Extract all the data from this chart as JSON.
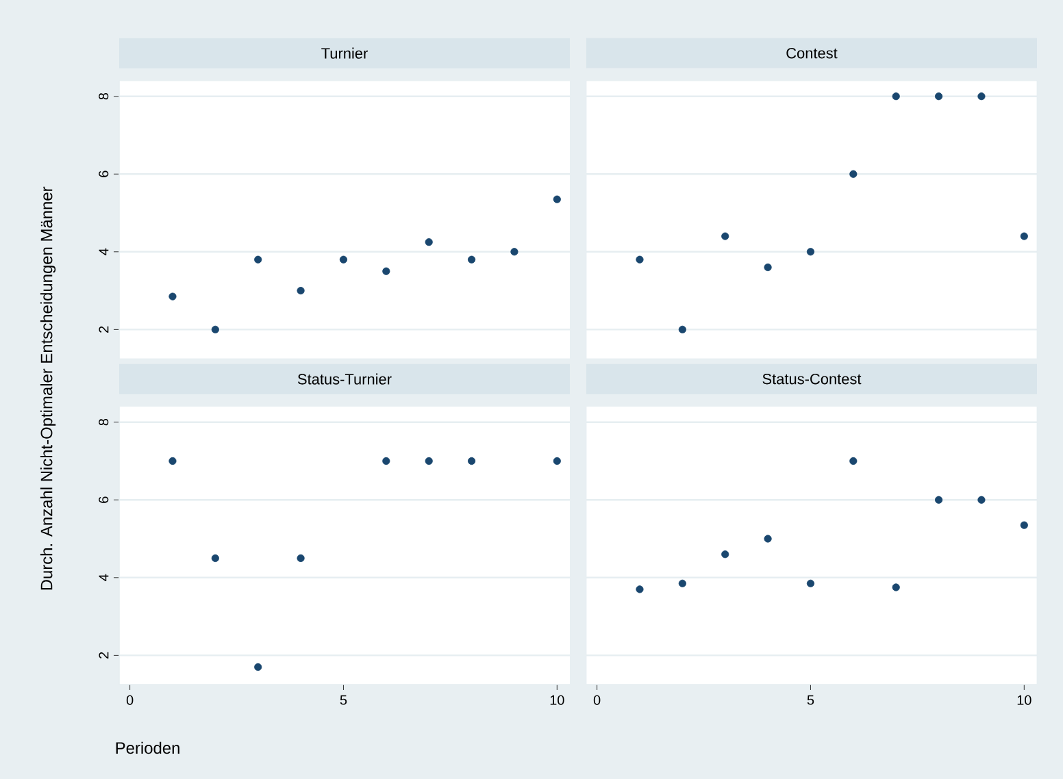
{
  "chart_data": [
    {
      "type": "scatter",
      "title": "Turnier",
      "ylabel": "Durch. Anzahl Nicht-Optimaler Entscheidungen Männer",
      "x": [
        1,
        2,
        3,
        4,
        5,
        6,
        7,
        8,
        9,
        10
      ],
      "values": [
        2.85,
        2.0,
        3.8,
        3.0,
        3.8,
        3.5,
        4.25,
        3.8,
        4.0,
        5.35
      ],
      "color": "#1a476f",
      "xlim": [
        -0.25,
        10.3
      ],
      "ylim": [
        1.25,
        8.4
      ],
      "xticks": [
        0,
        5,
        10
      ],
      "yticks": [
        2,
        4,
        6,
        8
      ],
      "grid": "y",
      "tick_labels": "y"
    },
    {
      "type": "scatter",
      "title": "Contest",
      "x": [
        1,
        2,
        3,
        4,
        5,
        6,
        7,
        8,
        9,
        10
      ],
      "values": [
        3.8,
        2.0,
        4.4,
        3.6,
        4.0,
        6.0,
        8.0,
        8.0,
        8.0,
        4.4
      ],
      "color": "#1a476f",
      "xlim": [
        -0.25,
        10.3
      ],
      "ylim": [
        1.25,
        8.4
      ],
      "xticks": [
        0,
        5,
        10
      ],
      "yticks": [
        2,
        4,
        6,
        8
      ],
      "grid": "y",
      "tick_labels": false
    },
    {
      "type": "scatter",
      "title": "Status-Turnier",
      "xlabel": "Perioden",
      "x": [
        1,
        2,
        3,
        4,
        5,
        6,
        7,
        8,
        9,
        10
      ],
      "values": [
        7.0,
        4.5,
        1.7,
        4.5,
        null,
        7.0,
        7.0,
        7.0,
        null,
        7.0
      ],
      "color": "#1a476f",
      "xlim": [
        -0.25,
        10.3
      ],
      "ylim": [
        1.25,
        8.4
      ],
      "xticks": [
        0,
        5,
        10
      ],
      "yticks": [
        2,
        4,
        6,
        8
      ],
      "grid": "y"
    },
    {
      "type": "scatter",
      "title": "Status-Contest",
      "x": [
        1,
        2,
        3,
        4,
        5,
        6,
        7,
        8,
        9,
        10
      ],
      "values": [
        3.7,
        3.85,
        4.6,
        5.0,
        3.85,
        7.0,
        3.75,
        6.0,
        6.0,
        5.35
      ],
      "color": "#1a476f",
      "xlim": [
        -0.25,
        10.3
      ],
      "ylim": [
        1.25,
        8.4
      ],
      "xticks": [
        0,
        5,
        10
      ],
      "yticks": [
        2,
        4,
        6,
        8
      ],
      "grid": "y",
      "tick_labels": "x"
    }
  ]
}
